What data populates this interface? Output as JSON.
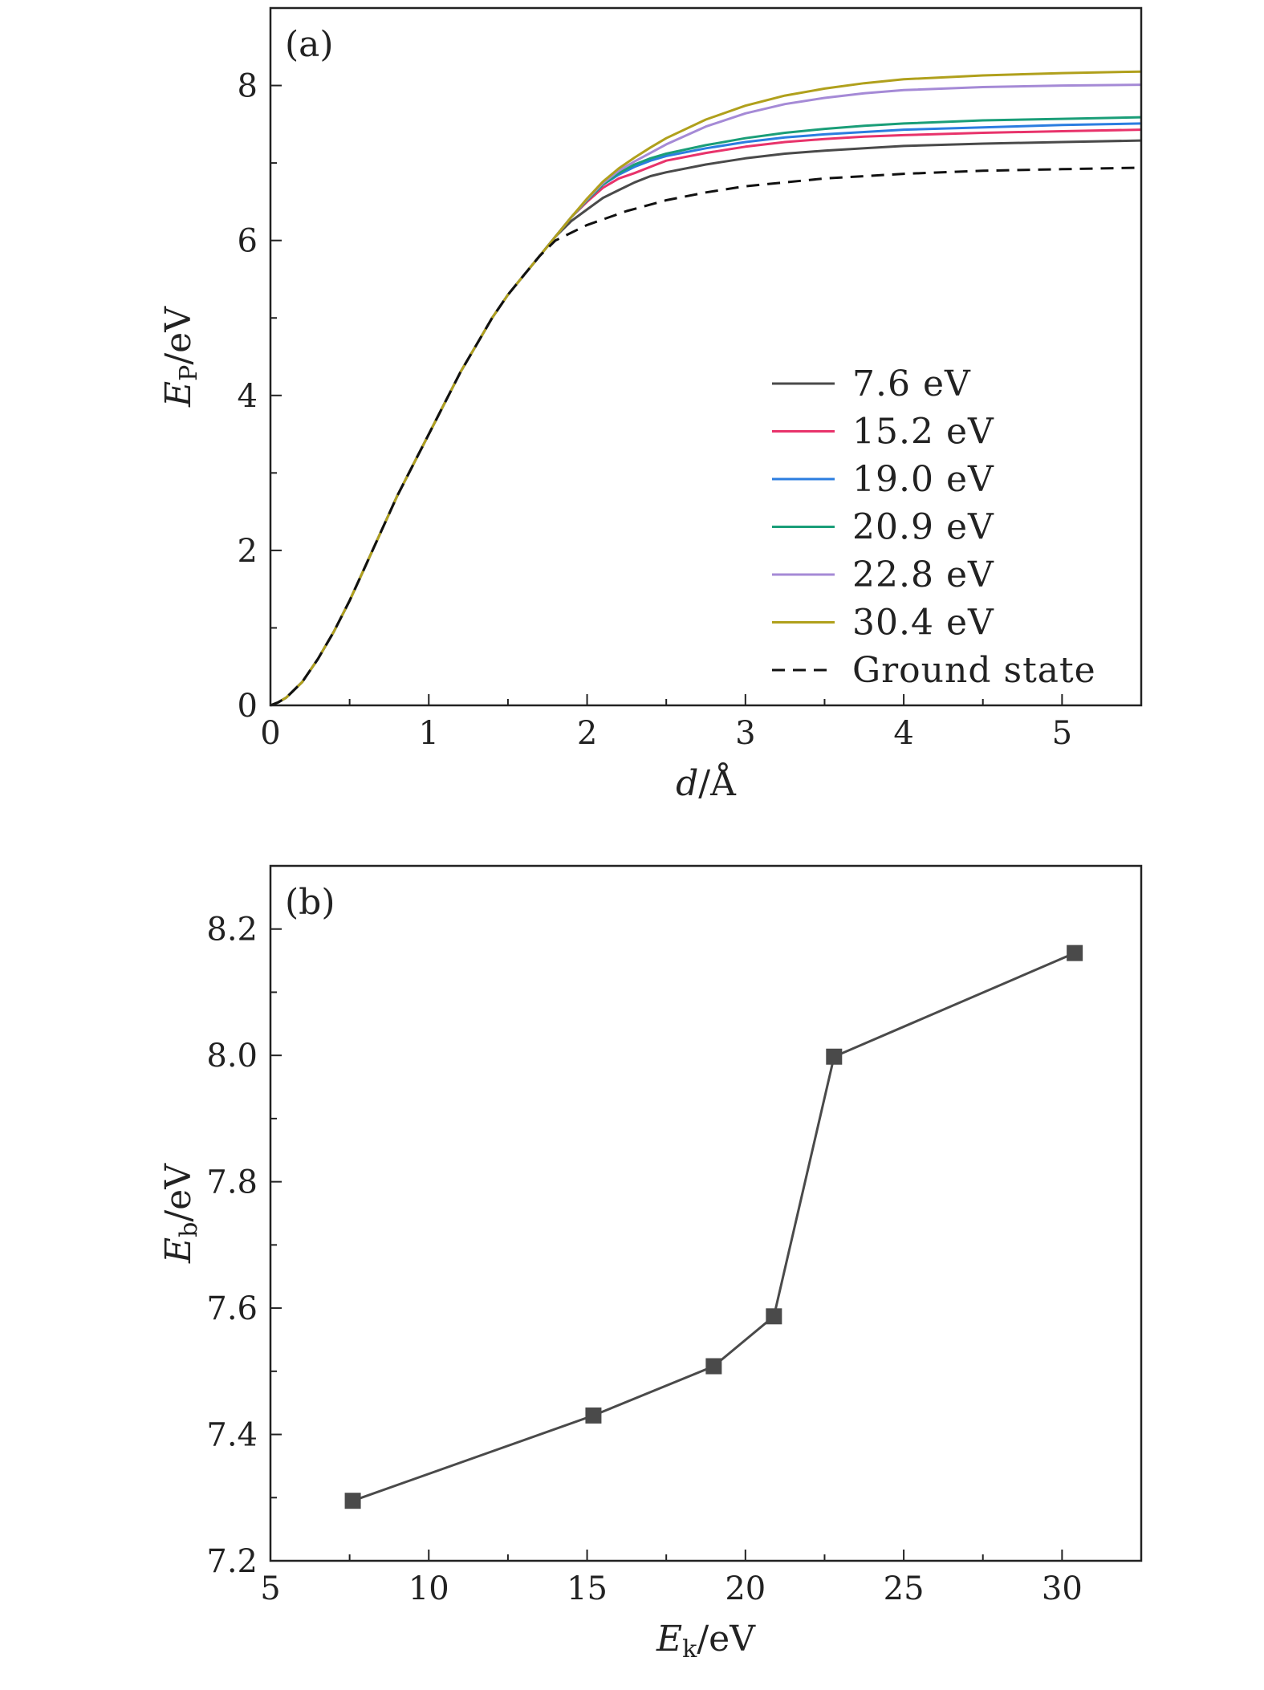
{
  "colors": {
    "axis": "#222222",
    "marker": "#4a4a4a"
  },
  "chart_data": [
    {
      "panel_label": "(a)",
      "type": "line",
      "xlabel": {
        "italic": "d",
        "rest": "/Å"
      },
      "ylabel": {
        "italic": "E",
        "sub": "P",
        "rest": "/eV"
      },
      "xlim": [
        0,
        5.5
      ],
      "ylim": [
        0,
        9
      ],
      "xticks": [
        0,
        1,
        2,
        3,
        4,
        5
      ],
      "xtick_labels": [
        "0",
        "1",
        "2",
        "3",
        "4",
        "5"
      ],
      "yticks": [
        0,
        2,
        4,
        6,
        8
      ],
      "ytick_labels": [
        "0",
        "2",
        "4",
        "6",
        "8"
      ],
      "legend_position": "center-right",
      "series": [
        {
          "name": "7.6 eV",
          "color": "#4a4a4a",
          "dash": false,
          "x": [
            0,
            0.05,
            0.1,
            0.2,
            0.3,
            0.4,
            0.5,
            0.6,
            0.7,
            0.8,
            0.9,
            1.0,
            1.1,
            1.2,
            1.3,
            1.4,
            1.5,
            1.6,
            1.7,
            1.8,
            1.9,
            2.0,
            2.1,
            2.2,
            2.3,
            2.4,
            2.5,
            2.75,
            3.0,
            3.25,
            3.5,
            3.75,
            4.0,
            4.5,
            5.0,
            5.5
          ],
          "y": [
            0,
            0.04,
            0.1,
            0.3,
            0.6,
            0.95,
            1.35,
            1.8,
            2.25,
            2.7,
            3.1,
            3.5,
            3.9,
            4.3,
            4.65,
            5.0,
            5.3,
            5.55,
            5.8,
            6.05,
            6.25,
            6.4,
            6.55,
            6.65,
            6.75,
            6.83,
            6.88,
            6.98,
            7.06,
            7.12,
            7.16,
            7.19,
            7.22,
            7.25,
            7.27,
            7.29
          ]
        },
        {
          "name": "15.2 eV",
          "color": "#e8336b",
          "dash": false,
          "x": [
            0,
            0.05,
            0.1,
            0.2,
            0.3,
            0.4,
            0.5,
            0.6,
            0.7,
            0.8,
            0.9,
            1.0,
            1.1,
            1.2,
            1.3,
            1.4,
            1.5,
            1.6,
            1.7,
            1.8,
            1.9,
            2.0,
            2.1,
            2.2,
            2.3,
            2.4,
            2.5,
            2.75,
            3.0,
            3.25,
            3.5,
            3.75,
            4.0,
            4.5,
            5.0,
            5.5
          ],
          "y": [
            0,
            0.04,
            0.1,
            0.3,
            0.6,
            0.95,
            1.35,
            1.8,
            2.25,
            2.7,
            3.1,
            3.5,
            3.9,
            4.3,
            4.65,
            5.0,
            5.3,
            5.55,
            5.8,
            6.05,
            6.3,
            6.5,
            6.68,
            6.8,
            6.87,
            6.95,
            7.03,
            7.13,
            7.21,
            7.27,
            7.31,
            7.34,
            7.36,
            7.39,
            7.41,
            7.43
          ]
        },
        {
          "name": "19.0 eV",
          "color": "#2b7de0",
          "dash": false,
          "x": [
            0,
            0.05,
            0.1,
            0.2,
            0.3,
            0.4,
            0.5,
            0.6,
            0.7,
            0.8,
            0.9,
            1.0,
            1.1,
            1.2,
            1.3,
            1.4,
            1.5,
            1.6,
            1.7,
            1.8,
            1.9,
            2.0,
            2.1,
            2.2,
            2.3,
            2.4,
            2.5,
            2.75,
            3.0,
            3.25,
            3.5,
            3.75,
            4.0,
            4.5,
            5.0,
            5.5
          ],
          "y": [
            0,
            0.04,
            0.1,
            0.3,
            0.6,
            0.95,
            1.35,
            1.8,
            2.25,
            2.7,
            3.1,
            3.5,
            3.9,
            4.3,
            4.65,
            5.0,
            5.3,
            5.55,
            5.8,
            6.05,
            6.3,
            6.52,
            6.72,
            6.85,
            6.95,
            7.03,
            7.09,
            7.19,
            7.27,
            7.33,
            7.37,
            7.4,
            7.43,
            7.46,
            7.49,
            7.51
          ]
        },
        {
          "name": "20.9 eV",
          "color": "#1a9e78",
          "dash": false,
          "x": [
            0,
            0.05,
            0.1,
            0.2,
            0.3,
            0.4,
            0.5,
            0.6,
            0.7,
            0.8,
            0.9,
            1.0,
            1.1,
            1.2,
            1.3,
            1.4,
            1.5,
            1.6,
            1.7,
            1.8,
            1.9,
            2.0,
            2.1,
            2.2,
            2.3,
            2.4,
            2.5,
            2.75,
            3.0,
            3.25,
            3.5,
            3.75,
            4.0,
            4.5,
            5.0,
            5.5
          ],
          "y": [
            0,
            0.04,
            0.1,
            0.3,
            0.6,
            0.95,
            1.35,
            1.8,
            2.25,
            2.7,
            3.1,
            3.5,
            3.9,
            4.3,
            4.65,
            5.0,
            5.3,
            5.55,
            5.8,
            6.05,
            6.3,
            6.52,
            6.72,
            6.87,
            6.98,
            7.06,
            7.12,
            7.23,
            7.32,
            7.39,
            7.44,
            7.48,
            7.51,
            7.55,
            7.57,
            7.59
          ]
        },
        {
          "name": "22.8 eV",
          "color": "#a58ad6",
          "dash": false,
          "x": [
            0,
            0.05,
            0.1,
            0.2,
            0.3,
            0.4,
            0.5,
            0.6,
            0.7,
            0.8,
            0.9,
            1.0,
            1.1,
            1.2,
            1.3,
            1.4,
            1.5,
            1.6,
            1.7,
            1.8,
            1.9,
            2.0,
            2.1,
            2.2,
            2.3,
            2.4,
            2.5,
            2.75,
            3.0,
            3.25,
            3.5,
            3.75,
            4.0,
            4.5,
            5.0,
            5.5
          ],
          "y": [
            0,
            0.04,
            0.1,
            0.3,
            0.6,
            0.95,
            1.35,
            1.8,
            2.25,
            2.7,
            3.1,
            3.5,
            3.9,
            4.3,
            4.65,
            5.0,
            5.3,
            5.55,
            5.8,
            6.05,
            6.3,
            6.53,
            6.74,
            6.9,
            7.02,
            7.13,
            7.24,
            7.47,
            7.64,
            7.76,
            7.84,
            7.9,
            7.94,
            7.98,
            8.0,
            8.01
          ]
        },
        {
          "name": "30.4 eV",
          "color": "#b0a01c",
          "dash": false,
          "x": [
            0,
            0.05,
            0.1,
            0.2,
            0.3,
            0.4,
            0.5,
            0.6,
            0.7,
            0.8,
            0.9,
            1.0,
            1.1,
            1.2,
            1.3,
            1.4,
            1.5,
            1.6,
            1.7,
            1.8,
            1.9,
            2.0,
            2.1,
            2.2,
            2.3,
            2.4,
            2.5,
            2.75,
            3.0,
            3.25,
            3.5,
            3.75,
            4.0,
            4.5,
            5.0,
            5.5
          ],
          "y": [
            0,
            0.04,
            0.1,
            0.3,
            0.6,
            0.95,
            1.35,
            1.8,
            2.25,
            2.7,
            3.1,
            3.5,
            3.9,
            4.3,
            4.65,
            5.0,
            5.3,
            5.55,
            5.8,
            6.05,
            6.3,
            6.54,
            6.76,
            6.93,
            7.07,
            7.2,
            7.32,
            7.56,
            7.74,
            7.87,
            7.96,
            8.03,
            8.08,
            8.13,
            8.16,
            8.18
          ]
        },
        {
          "name": "Ground state",
          "color": "#111111",
          "dash": true,
          "x": [
            0,
            0.05,
            0.1,
            0.2,
            0.3,
            0.4,
            0.5,
            0.6,
            0.7,
            0.8,
            0.9,
            1.0,
            1.1,
            1.2,
            1.3,
            1.4,
            1.5,
            1.6,
            1.7,
            1.8,
            1.9,
            2.0,
            2.25,
            2.5,
            2.75,
            3.0,
            3.5,
            4.0,
            4.5,
            5.0,
            5.5
          ],
          "y": [
            0,
            0.04,
            0.1,
            0.3,
            0.6,
            0.95,
            1.35,
            1.8,
            2.25,
            2.7,
            3.1,
            3.5,
            3.9,
            4.3,
            4.65,
            5.0,
            5.3,
            5.55,
            5.8,
            6.0,
            6.1,
            6.2,
            6.38,
            6.52,
            6.62,
            6.7,
            6.8,
            6.86,
            6.9,
            6.92,
            6.94
          ]
        }
      ]
    },
    {
      "panel_label": "(b)",
      "type": "line",
      "xlabel": {
        "italic": "E",
        "sub": "k",
        "rest": "/eV"
      },
      "ylabel": {
        "italic": "E",
        "sub": "b",
        "rest": "/eV"
      },
      "xlim": [
        5,
        32.5
      ],
      "ylim": [
        7.2,
        8.3
      ],
      "xticks": [
        5,
        10,
        15,
        20,
        25,
        30
      ],
      "xtick_labels": [
        "5",
        "10",
        "15",
        "20",
        "25",
        "30"
      ],
      "yticks": [
        7.2,
        7.4,
        7.6,
        7.8,
        8.0,
        8.2
      ],
      "ytick_labels": [
        "7.2",
        "7.4",
        "7.6",
        "7.8",
        "8.0",
        "8.2"
      ],
      "marker": "square",
      "series": [
        {
          "x": [
            7.6,
            15.2,
            19.0,
            20.9,
            22.8,
            30.4
          ],
          "y": [
            7.295,
            7.43,
            7.508,
            7.587,
            7.998,
            8.162
          ]
        }
      ]
    }
  ]
}
